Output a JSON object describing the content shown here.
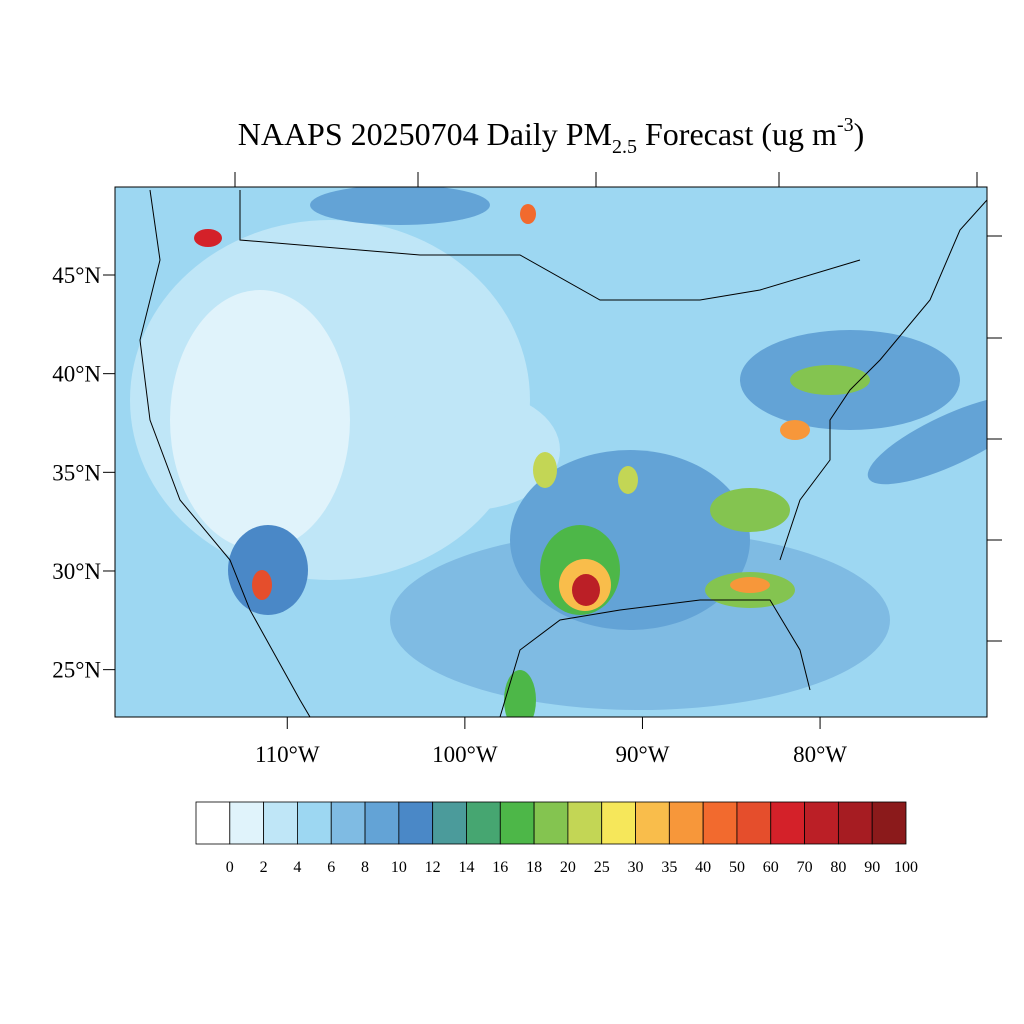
{
  "title": {
    "main": "NAAPS 20250704 Daily PM",
    "sub": "2.5",
    "mid": " Forecast (ug m",
    "sup": "-3",
    "end": ")"
  },
  "map": {
    "lonlim": [
      -119.7,
      -70.6
    ],
    "latlim": [
      22.6,
      49.46
    ],
    "latticks": [
      {
        "value": 45,
        "label": "45°N"
      },
      {
        "value": 40,
        "label": "40°N"
      },
      {
        "value": 35,
        "label": "35°N"
      },
      {
        "value": 30,
        "label": "30°N"
      },
      {
        "value": 25,
        "label": "25°N"
      }
    ],
    "lonticks": [
      {
        "value": -110,
        "label": "110°W"
      },
      {
        "value": -100,
        "label": "100°W"
      },
      {
        "value": -90,
        "label": "90°W"
      },
      {
        "value": -80,
        "label": "80°W"
      }
    ]
  },
  "colorbar": {
    "levels": [
      0,
      2,
      4,
      6,
      8,
      10,
      12,
      14,
      16,
      18,
      20,
      25,
      30,
      35,
      40,
      50,
      60,
      70,
      80,
      90,
      100
    ],
    "colors": [
      "#ffffff",
      "#e0f3fb",
      "#bfe6f7",
      "#9dd7f2",
      "#7fbbe3",
      "#63a3d6",
      "#4a88c7",
      "#4b9b9b",
      "#46a671",
      "#4db748",
      "#84c450",
      "#c3d655",
      "#f6e75a",
      "#f9bd4b",
      "#f7973a",
      "#f26a2e",
      "#e54e2c",
      "#d42129",
      "#bb1f26",
      "#a61c22",
      "#8b1a1b"
    ]
  }
}
